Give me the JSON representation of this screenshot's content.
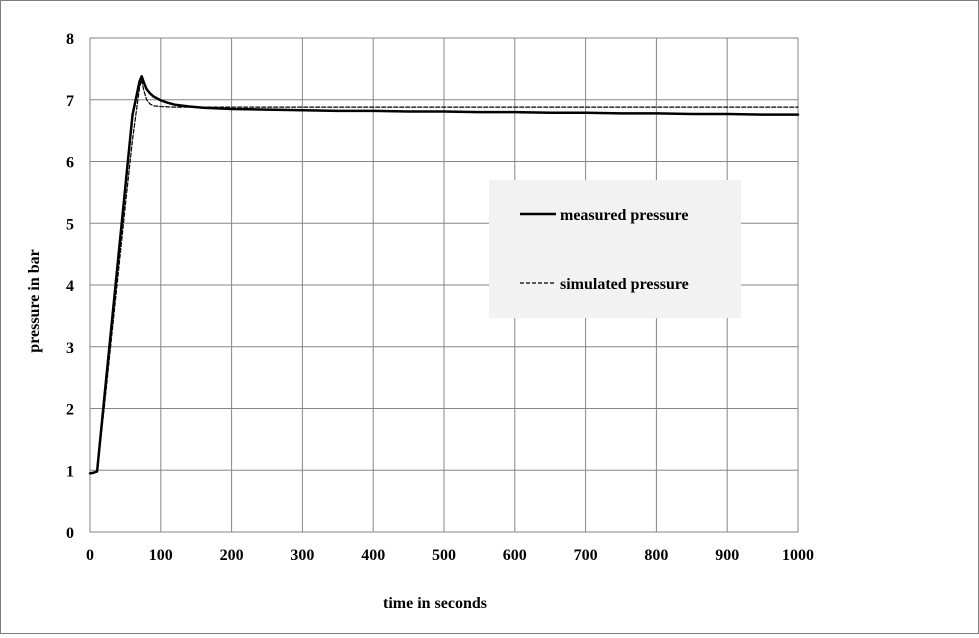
{
  "chart_data": {
    "type": "line",
    "title": "",
    "xlabel": "time in seconds",
    "ylabel": "pressure in bar",
    "xlim": [
      0,
      1000
    ],
    "ylim": [
      0,
      8
    ],
    "xticks": [
      0,
      100,
      200,
      300,
      400,
      500,
      600,
      700,
      800,
      900,
      1000
    ],
    "yticks": [
      0,
      1,
      2,
      3,
      4,
      5,
      6,
      7,
      8
    ],
    "xtick_labels": [
      "0",
      "100",
      "200",
      "300",
      "400",
      "500",
      "600",
      "700",
      "800",
      "900",
      "1000"
    ],
    "ytick_labels": [
      "0",
      "1",
      "2",
      "3",
      "4",
      "5",
      "6",
      "7",
      "8"
    ],
    "grid": true,
    "legend_position": "right-center",
    "series": [
      {
        "name": "measured pressure",
        "style": "solid",
        "color": "#000000",
        "x": [
          0,
          5,
          10,
          20,
          30,
          40,
          50,
          60,
          70,
          73,
          76,
          80,
          85,
          90,
          100,
          110,
          120,
          140,
          160,
          180,
          200,
          250,
          300,
          350,
          400,
          450,
          500,
          550,
          600,
          650,
          700,
          750,
          800,
          850,
          900,
          950,
          1000
        ],
        "y": [
          0.95,
          0.96,
          0.98,
          2.15,
          3.3,
          4.45,
          5.6,
          6.75,
          7.3,
          7.38,
          7.28,
          7.17,
          7.1,
          7.05,
          6.99,
          6.95,
          6.92,
          6.89,
          6.87,
          6.86,
          6.85,
          6.84,
          6.83,
          6.82,
          6.82,
          6.81,
          6.81,
          6.8,
          6.8,
          6.79,
          6.79,
          6.78,
          6.78,
          6.77,
          6.77,
          6.76,
          6.76
        ]
      },
      {
        "name": "simulated pressure",
        "style": "dashed",
        "color": "#000000",
        "x": [
          0,
          10,
          20,
          30,
          40,
          50,
          60,
          70,
          73,
          76,
          80,
          85,
          90,
          100,
          120,
          150,
          200,
          1000
        ],
        "y": [
          0.95,
          0.97,
          2.0,
          3.1,
          4.2,
          5.3,
          6.35,
          7.2,
          7.32,
          7.15,
          7.0,
          6.93,
          6.9,
          6.89,
          6.88,
          6.88,
          6.88,
          6.88
        ]
      }
    ]
  },
  "legend": {
    "items": [
      "measured pressure",
      "simulated pressure"
    ],
    "background": "#f2f2f2"
  },
  "colors": {
    "grid": "#868686",
    "frame": "#7f7f7f",
    "background": "#ffffff",
    "line": "#000000"
  }
}
